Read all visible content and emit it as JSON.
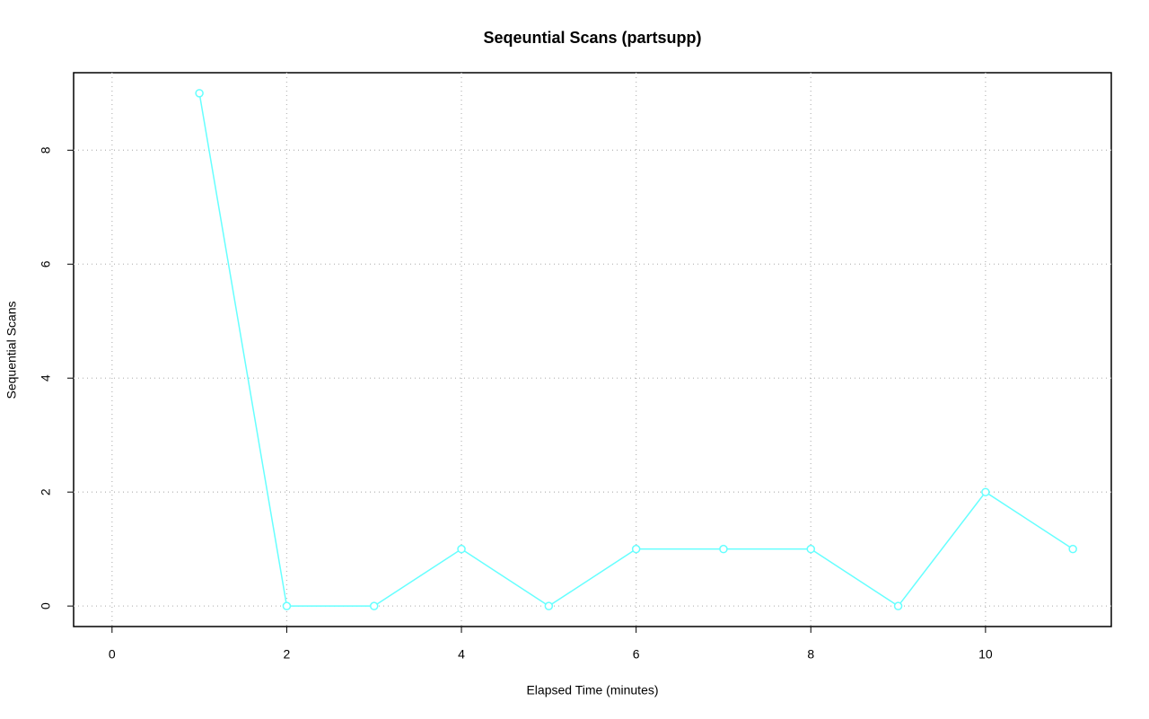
{
  "chart_data": {
    "type": "line",
    "title": "Seqeuntial Scans (partsupp)",
    "x_label": "Elapsed Time (minutes)",
    "y_label": "Sequential Scans",
    "x": [
      1,
      2,
      3,
      4,
      5,
      6,
      7,
      8,
      9,
      10,
      11
    ],
    "series": [
      {
        "color": "#66ffff",
        "values": [
          9,
          0,
          0,
          1,
          0,
          1,
          1,
          1,
          0,
          2,
          1
        ]
      }
    ],
    "xlim": [
      -0.44,
      11.44
    ],
    "xticks": [
      0,
      2,
      4,
      6,
      8,
      10
    ],
    "ylim": [
      -0.36,
      9.36
    ],
    "yticks": [
      0,
      2,
      4,
      6,
      8
    ],
    "grid": true
  }
}
